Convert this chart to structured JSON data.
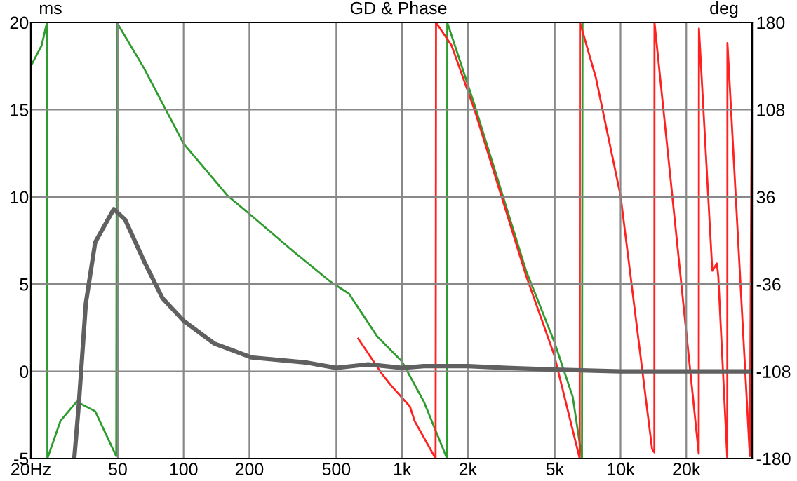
{
  "chart_data": {
    "type": "line",
    "title": "GD & Phase",
    "ylabel": "ms",
    "y2label": "deg",
    "log": "x",
    "grid": true,
    "marker": "none",
    "line_style": "solid",
    "xlim": [
      20,
      40000
    ],
    "xticks": [
      {
        "value": 20,
        "label": "20Hz"
      },
      50,
      100,
      200,
      500,
      {
        "value": 1000,
        "label": "1k"
      },
      {
        "value": 2000,
        "label": "2k"
      },
      {
        "value": 5000,
        "label": "5k"
      },
      {
        "value": 10000,
        "label": "10k"
      },
      {
        "value": 20000,
        "label": "20k"
      }
    ],
    "ylim": [
      -5,
      20
    ],
    "yticks": [
      -5,
      0,
      5,
      10,
      15,
      20
    ],
    "y2lim": [
      -180,
      180
    ],
    "y2ticks": [
      -180,
      -108,
      -36,
      36,
      108,
      180
    ],
    "series": [
      {
        "color": "#2e9b2e",
        "axis": "y2",
        "x": [
          20,
          22.4,
          23.7,
          23.8,
          27.3,
          32.4,
          39.4,
          49.2,
          49.5,
          66,
          100,
          159,
          200,
          318,
          470,
          572,
          768,
          1000,
          1258,
          1606,
          1610,
          2154,
          2890,
          3694,
          4960,
          6040,
          6660,
          6700
        ],
        "values": [
          144,
          161,
          180,
          -180,
          -149,
          -133,
          -141,
          -178,
          180,
          142,
          80,
          37,
          22,
          -9,
          -34,
          -44,
          -79,
          -100,
          -133,
          -180,
          180,
          111,
          37,
          -25,
          -83,
          -129,
          -180,
          180
        ]
      },
      {
        "color": "#ff2020",
        "axis": "y2",
        "x": [
          630,
          808,
          894,
          1086,
          1141,
          1424,
          1430,
          1684,
          2154,
          2890,
          3694,
          4960,
          6340,
          6500,
          6520,
          7720,
          10000,
          13940,
          14280,
          14300,
          22800,
          22850,
          26300,
          27600,
          28000,
          30800,
          30850,
          39060,
          40000
        ],
        "values": [
          -81,
          -110,
          -120,
          -137,
          -149,
          -180,
          180,
          161,
          107,
          33,
          -29,
          -94,
          -172,
          -180,
          180,
          134,
          37,
          -172,
          -175,
          180,
          -176,
          175,
          -25,
          -19,
          -29,
          -180,
          163,
          -178,
          175
        ]
      },
      {
        "color": "#606060",
        "x": [
          31.6,
          33.1,
          35.7,
          39.4,
          47.9,
          54,
          66,
          80,
          100,
          138,
          204,
          368,
          500,
          698,
          1000,
          1258,
          2000,
          3000,
          5000,
          10000,
          20000,
          40000
        ],
        "values": [
          -5,
          -2,
          3.9,
          7.4,
          9.3,
          8.7,
          6.3,
          4.2,
          2.9,
          1.6,
          0.8,
          0.5,
          0.2,
          0.4,
          0.2,
          0.3,
          0.3,
          0.2,
          0.1,
          0,
          0,
          0
        ]
      }
    ]
  }
}
